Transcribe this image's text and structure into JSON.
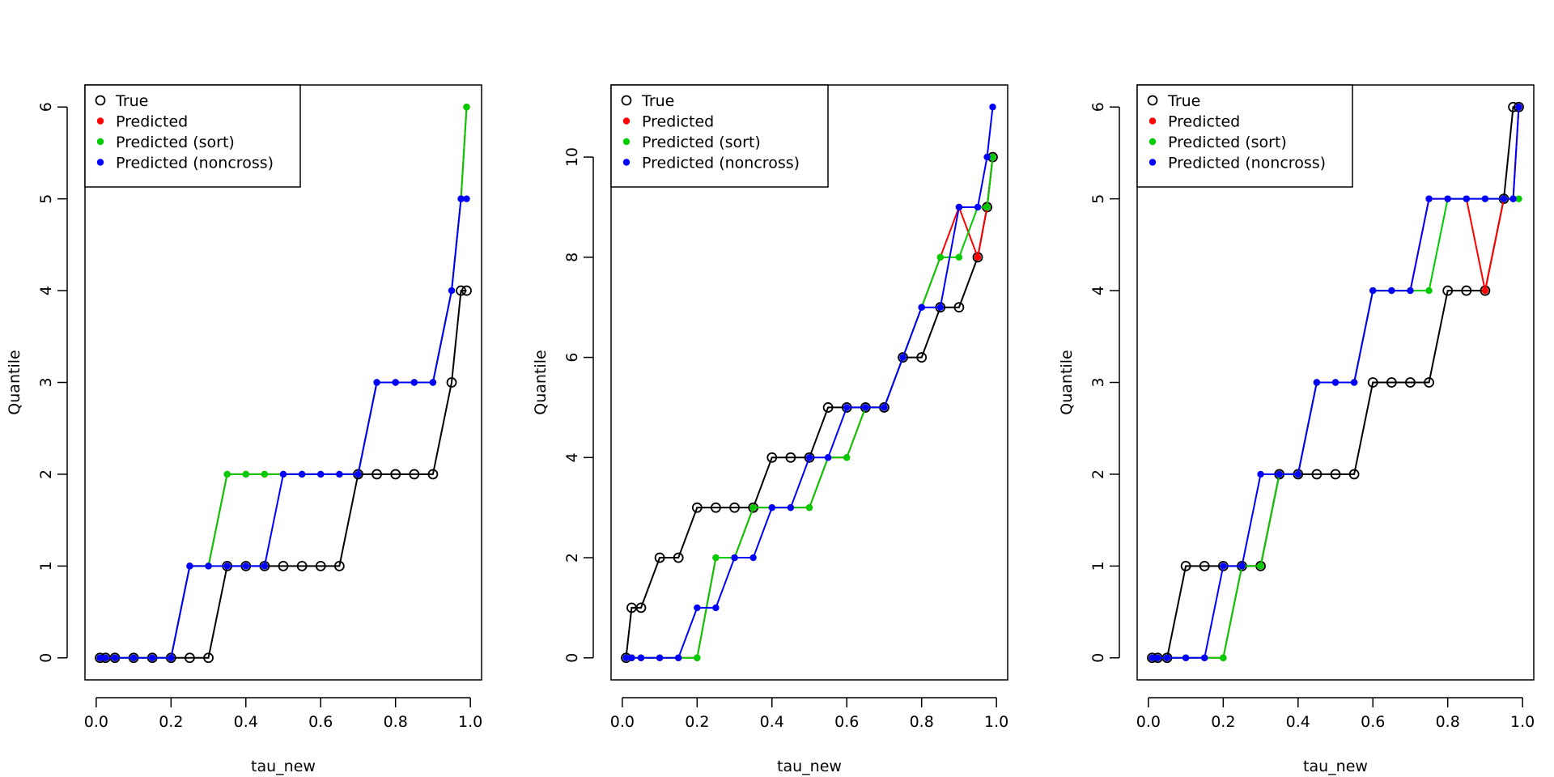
{
  "colors": {
    "true": "#000000",
    "predicted": "#ff0000",
    "sort": "#00cc00",
    "noncross": "#0000ff"
  },
  "chart_data": [
    {
      "type": "line",
      "xlabel": "tau_new",
      "ylabel": "Quantile",
      "xlim": [
        -0.03,
        1.03
      ],
      "ylim": [
        -0.24,
        6.24
      ],
      "xticks": [
        "0.0",
        "0.2",
        "0.4",
        "0.6",
        "0.8",
        "1.0"
      ],
      "yticks": [
        "0",
        "1",
        "2",
        "3",
        "4",
        "5",
        "6"
      ],
      "legend": {
        "position": "top-left",
        "entries": [
          "True",
          "Predicted",
          "Predicted (sort)",
          "Predicted (noncross)"
        ]
      },
      "x": [
        0.01,
        0.025,
        0.05,
        0.1,
        0.15,
        0.2,
        0.25,
        0.3,
        0.35,
        0.4,
        0.45,
        0.5,
        0.55,
        0.6,
        0.65,
        0.7,
        0.75,
        0.8,
        0.85,
        0.9,
        0.95,
        0.975,
        0.99
      ],
      "series": [
        {
          "name": "True",
          "values": [
            0,
            0,
            0,
            0,
            0,
            0,
            0,
            0,
            1,
            1,
            1,
            1,
            1,
            1,
            1,
            2,
            2,
            2,
            2,
            2,
            3,
            4,
            4
          ]
        },
        {
          "name": "Predicted",
          "values": [
            0,
            0,
            0,
            0,
            0,
            0,
            1,
            1,
            2,
            2,
            2,
            2,
            2,
            2,
            2,
            2,
            3,
            3,
            3,
            3,
            4,
            5,
            6
          ]
        },
        {
          "name": "Predicted (sort)",
          "values": [
            0,
            0,
            0,
            0,
            0,
            0,
            1,
            1,
            2,
            2,
            2,
            2,
            2,
            2,
            2,
            2,
            3,
            3,
            3,
            3,
            4,
            5,
            6
          ]
        },
        {
          "name": "Predicted (noncross)",
          "values": [
            0,
            0,
            0,
            0,
            0,
            0,
            1,
            1,
            1,
            1,
            1,
            2,
            2,
            2,
            2,
            2,
            3,
            3,
            3,
            3,
            4,
            5,
            5
          ]
        }
      ]
    },
    {
      "type": "line",
      "xlabel": "tau_new",
      "ylabel": "Quantile",
      "xlim": [
        -0.03,
        1.03
      ],
      "ylim": [
        -0.44,
        11.44
      ],
      "xticks": [
        "0.0",
        "0.2",
        "0.4",
        "0.6",
        "0.8",
        "1.0"
      ],
      "yticks": [
        "0",
        "2",
        "4",
        "6",
        "8",
        "10"
      ],
      "legend": {
        "position": "top-left",
        "entries": [
          "True",
          "Predicted",
          "Predicted (sort)",
          "Predicted (noncross)"
        ]
      },
      "x": [
        0.01,
        0.025,
        0.05,
        0.1,
        0.15,
        0.2,
        0.25,
        0.3,
        0.35,
        0.4,
        0.45,
        0.5,
        0.55,
        0.6,
        0.65,
        0.7,
        0.75,
        0.8,
        0.85,
        0.9,
        0.95,
        0.975,
        0.99
      ],
      "series": [
        {
          "name": "True",
          "values": [
            0,
            1,
            1,
            2,
            2,
            3,
            3,
            3,
            3,
            4,
            4,
            4,
            5,
            5,
            5,
            5,
            6,
            6,
            7,
            7,
            8,
            9,
            10
          ]
        },
        {
          "name": "Predicted",
          "values": [
            0,
            0,
            0,
            0,
            0,
            0,
            2,
            2,
            3,
            3,
            3,
            3,
            4,
            4,
            5,
            5,
            6,
            7,
            8,
            9,
            8,
            9,
            10
          ]
        },
        {
          "name": "Predicted (sort)",
          "values": [
            0,
            0,
            0,
            0,
            0,
            0,
            2,
            2,
            3,
            3,
            3,
            3,
            4,
            4,
            5,
            5,
            6,
            7,
            8,
            8,
            9,
            9,
            10
          ]
        },
        {
          "name": "Predicted (noncross)",
          "values": [
            0,
            0,
            0,
            0,
            0,
            1,
            1,
            2,
            2,
            3,
            3,
            4,
            4,
            5,
            5,
            5,
            6,
            7,
            7,
            9,
            9,
            10,
            11
          ]
        }
      ]
    },
    {
      "type": "line",
      "xlabel": "tau_new",
      "ylabel": "Quantile",
      "xlim": [
        -0.03,
        1.03
      ],
      "ylim": [
        -0.24,
        6.24
      ],
      "xticks": [
        "0.0",
        "0.2",
        "0.4",
        "0.6",
        "0.8",
        "1.0"
      ],
      "yticks": [
        "0",
        "1",
        "2",
        "3",
        "4",
        "5",
        "6"
      ],
      "legend": {
        "position": "top-left",
        "entries": [
          "True",
          "Predicted",
          "Predicted (sort)",
          "Predicted (noncross)"
        ]
      },
      "x": [
        0.01,
        0.025,
        0.05,
        0.1,
        0.15,
        0.2,
        0.25,
        0.3,
        0.35,
        0.4,
        0.45,
        0.5,
        0.55,
        0.6,
        0.65,
        0.7,
        0.75,
        0.8,
        0.85,
        0.9,
        0.95,
        0.975,
        0.99
      ],
      "series": [
        {
          "name": "True",
          "values": [
            0,
            0,
            0,
            1,
            1,
            1,
            1,
            1,
            2,
            2,
            2,
            2,
            2,
            3,
            3,
            3,
            3,
            4,
            4,
            4,
            5,
            6,
            6
          ]
        },
        {
          "name": "Predicted",
          "values": [
            0,
            0,
            0,
            0,
            0,
            0,
            1,
            1,
            2,
            2,
            3,
            3,
            3,
            4,
            4,
            4,
            5,
            5,
            5,
            4,
            5,
            5,
            6
          ]
        },
        {
          "name": "Predicted (sort)",
          "values": [
            0,
            0,
            0,
            0,
            0,
            0,
            1,
            1,
            2,
            2,
            3,
            3,
            3,
            4,
            4,
            4,
            4,
            5,
            5,
            5,
            5,
            5,
            5
          ]
        },
        {
          "name": "Predicted (noncross)",
          "values": [
            0,
            0,
            0,
            0,
            0,
            1,
            1,
            2,
            2,
            2,
            3,
            3,
            3,
            4,
            4,
            4,
            5,
            5,
            5,
            5,
            5,
            5,
            6
          ]
        }
      ]
    }
  ]
}
